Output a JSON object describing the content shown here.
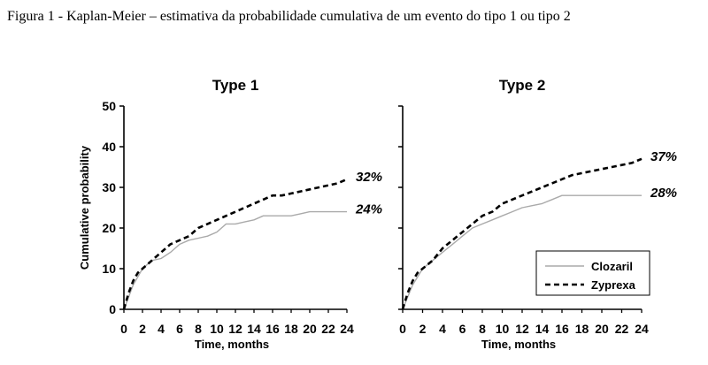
{
  "caption": "Figura 1 - Kaplan-Meier – estimativa da probabilidade cumulativa de um evento do tipo 1 ou tipo 2",
  "legend": {
    "items": [
      {
        "name": "Clozaril",
        "color": "#aaaaaa",
        "dash": "solid"
      },
      {
        "name": "Zyprexa",
        "color": "#000000",
        "dash": "dashed"
      }
    ],
    "position": "bottom-right of right panel"
  },
  "chart_data": [
    {
      "type": "line",
      "title": "Type 1",
      "xlabel": "Time, months",
      "ylabel": "Cumulative probability",
      "xlim": [
        0,
        24
      ],
      "ylim": [
        0,
        50
      ],
      "xticks": [
        "0",
        "2",
        "4",
        "6",
        "8",
        "10",
        "12",
        "14",
        "16",
        "18",
        "20",
        "22",
        "24"
      ],
      "yticks": [
        "0",
        "10",
        "20",
        "30",
        "40",
        "50"
      ],
      "grid": false,
      "series": [
        {
          "name": "Clozaril",
          "x": [
            0,
            0.5,
            1,
            1.5,
            2,
            2.5,
            3,
            4,
            5,
            6,
            7,
            8,
            9,
            10,
            11,
            12,
            13,
            14,
            15,
            16,
            17,
            18,
            19,
            20,
            21,
            22,
            23,
            24
          ],
          "y": [
            0,
            3,
            6,
            8,
            10,
            11,
            12,
            12.5,
            14,
            16,
            17,
            17.5,
            18,
            19,
            21,
            21,
            21.5,
            22,
            23,
            23,
            23,
            23,
            23.5,
            24,
            24,
            24,
            24,
            24
          ]
        },
        {
          "name": "Zyprexa",
          "x": [
            0,
            0.5,
            1,
            1.5,
            2,
            2.5,
            3,
            4,
            5,
            6,
            7,
            8,
            9,
            10,
            11,
            12,
            13,
            14,
            15,
            16,
            17,
            18,
            19,
            20,
            21,
            22,
            23,
            24
          ],
          "y": [
            0,
            4,
            7,
            9,
            10,
            11,
            12,
            14,
            16,
            17,
            18,
            20,
            21,
            22,
            23,
            24,
            25,
            26,
            27,
            28,
            28,
            28.5,
            29,
            29.5,
            30,
            30.5,
            31,
            32
          ]
        }
      ],
      "end_labels": [
        {
          "series": "Zyprexa",
          "text": "32%"
        },
        {
          "series": "Clozaril",
          "text": "24%"
        }
      ]
    },
    {
      "type": "line",
      "title": "Type 2",
      "xlabel": "Time, months",
      "ylabel": "",
      "xlim": [
        0,
        24
      ],
      "ylim": [
        0,
        50
      ],
      "xticks": [
        "0",
        "2",
        "4",
        "6",
        "8",
        "10",
        "12",
        "14",
        "16",
        "18",
        "20",
        "22",
        "24"
      ],
      "yticks": [
        "",
        "",
        "",
        "",
        "",
        ""
      ],
      "grid": false,
      "series": [
        {
          "name": "Clozaril",
          "x": [
            0,
            0.5,
            1,
            1.5,
            2,
            3,
            4,
            5,
            6,
            7,
            8,
            9,
            10,
            11,
            12,
            13,
            14,
            15,
            16,
            17,
            18,
            19,
            20,
            21,
            22,
            23,
            24
          ],
          "y": [
            0,
            3,
            6,
            8,
            10,
            12,
            14,
            16,
            18,
            20,
            21,
            22,
            23,
            24,
            25,
            25.5,
            26,
            27,
            28,
            28,
            28,
            28,
            28,
            28,
            28,
            28,
            28
          ]
        },
        {
          "name": "Zyprexa",
          "x": [
            0,
            0.5,
            1,
            1.5,
            2,
            3,
            4,
            5,
            6,
            7,
            8,
            9,
            10,
            11,
            12,
            13,
            14,
            15,
            16,
            17,
            18,
            19,
            20,
            21,
            22,
            23,
            24
          ],
          "y": [
            0,
            4,
            7,
            9,
            10,
            12,
            15,
            17,
            19,
            21,
            23,
            24,
            26,
            27,
            28,
            29,
            30,
            31,
            32,
            33,
            33.5,
            34,
            34.5,
            35,
            35.5,
            36,
            37
          ]
        }
      ],
      "end_labels": [
        {
          "series": "Zyprexa",
          "text": "37%"
        },
        {
          "series": "Clozaril",
          "text": "28%"
        }
      ]
    }
  ]
}
